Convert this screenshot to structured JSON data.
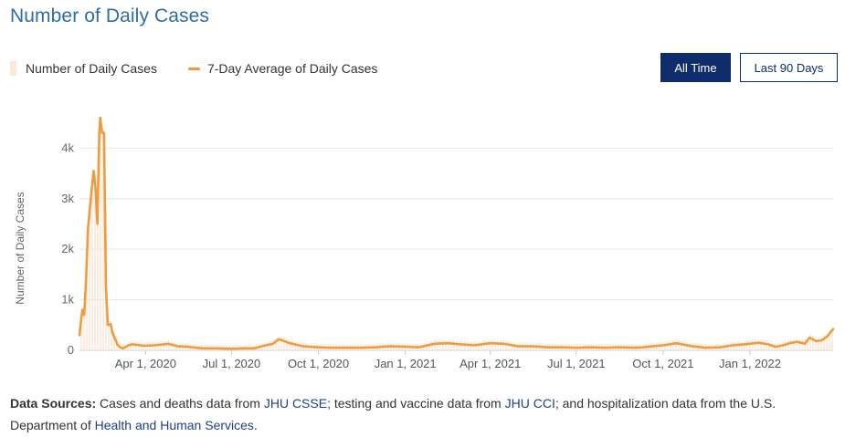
{
  "title": "Number of Daily Cases",
  "legend": {
    "bars_label": "Number of Daily Cases",
    "line_label": "7-Day Average of Daily Cases"
  },
  "buttons": {
    "all_time": "All Time",
    "last_90": "Last 90 Days"
  },
  "colors": {
    "title": "#2d6ea8",
    "line": "#ef9c3f",
    "bars": "#fbe9d8",
    "button_dark": "#0f2d6b",
    "grid": "#e6e6e6"
  },
  "footer": {
    "lead": "Data Sources:",
    "t1": " Cases and deaths data from ",
    "link1": "JHU CSSE",
    "t2": "; testing and vaccine data from ",
    "link2": "JHU CCI",
    "t3": "; and hospitalization data from the U.S. Department of ",
    "link3": "Health and Human Services",
    "t4": "."
  },
  "chart_data": {
    "type": "line",
    "title": "Number of Daily Cases",
    "xlabel": "",
    "ylabel": "Number of Daily Cases",
    "ylim": [
      0,
      4800
    ],
    "yticks": [
      0,
      1000,
      2000,
      3000,
      4000
    ],
    "ytick_labels": [
      "0",
      "1k",
      "2k",
      "3k",
      "4k"
    ],
    "xlim": [
      "2020-01-22",
      "2022-03-30"
    ],
    "xticks": [
      "2020-04-01",
      "2020-07-01",
      "2020-10-01",
      "2021-01-01",
      "2021-04-01",
      "2021-07-01",
      "2021-10-01",
      "2022-01-01"
    ],
    "xtick_labels": [
      "Apr 1, 2020",
      "Jul 1, 2020",
      "Oct 1, 2020",
      "Jan 1, 2021",
      "Apr 1, 2021",
      "Jul 1, 2021",
      "Oct 1, 2021",
      "Jan 1, 2022"
    ],
    "grid": true,
    "legend_position": "top-left",
    "series": [
      {
        "name": "7-Day Average of Daily Cases",
        "type": "line",
        "x": [
          "2020-01-22",
          "2020-01-25",
          "2020-01-27",
          "2020-01-29",
          "2020-01-31",
          "2020-02-03",
          "2020-02-06",
          "2020-02-08",
          "2020-02-10",
          "2020-02-12",
          "2020-02-13",
          "2020-02-15",
          "2020-02-17",
          "2020-02-19",
          "2020-02-21",
          "2020-02-24",
          "2020-02-26",
          "2020-02-28",
          "2020-03-02",
          "2020-03-05",
          "2020-03-08",
          "2020-03-11",
          "2020-03-14",
          "2020-03-18",
          "2020-03-22",
          "2020-03-30",
          "2020-04-10",
          "2020-04-25",
          "2020-05-05",
          "2020-05-15",
          "2020-05-25",
          "2020-06-01",
          "2020-06-08",
          "2020-06-15",
          "2020-07-01",
          "2020-07-15",
          "2020-07-25",
          "2020-08-06",
          "2020-08-14",
          "2020-08-20",
          "2020-09-01",
          "2020-09-15",
          "2020-10-01",
          "2020-10-15",
          "2020-11-01",
          "2020-11-15",
          "2020-12-01",
          "2020-12-15",
          "2021-01-01",
          "2021-01-15",
          "2021-02-01",
          "2021-02-15",
          "2021-03-01",
          "2021-03-15",
          "2021-04-01",
          "2021-04-15",
          "2021-05-01",
          "2021-05-15",
          "2021-06-01",
          "2021-06-15",
          "2021-07-01",
          "2021-07-15",
          "2021-08-01",
          "2021-08-15",
          "2021-09-01",
          "2021-09-10",
          "2021-09-20",
          "2021-10-01",
          "2021-10-15",
          "2021-11-01",
          "2021-11-15",
          "2021-12-01",
          "2021-12-10",
          "2021-12-20",
          "2022-01-01",
          "2022-01-10",
          "2022-01-20",
          "2022-01-28",
          "2022-02-05",
          "2022-02-12",
          "2022-02-20",
          "2022-02-28",
          "2022-03-05",
          "2022-03-12",
          "2022-03-18",
          "2022-03-24",
          "2022-03-30"
        ],
        "values": [
          300,
          800,
          700,
          1400,
          2400,
          3000,
          3550,
          3200,
          2500,
          4300,
          4600,
          4300,
          4300,
          1300,
          500,
          520,
          350,
          250,
          120,
          60,
          40,
          70,
          100,
          120,
          110,
          90,
          100,
          130,
          80,
          70,
          50,
          40,
          40,
          40,
          30,
          40,
          40,
          100,
          130,
          220,
          140,
          80,
          60,
          50,
          50,
          50,
          60,
          80,
          70,
          60,
          130,
          140,
          120,
          100,
          140,
          130,
          80,
          80,
          60,
          60,
          50,
          60,
          50,
          60,
          50,
          60,
          80,
          100,
          140,
          80,
          50,
          60,
          90,
          110,
          130,
          150,
          120,
          70,
          100,
          140,
          170,
          130,
          250,
          180,
          200,
          280,
          420
        ]
      }
    ]
  }
}
